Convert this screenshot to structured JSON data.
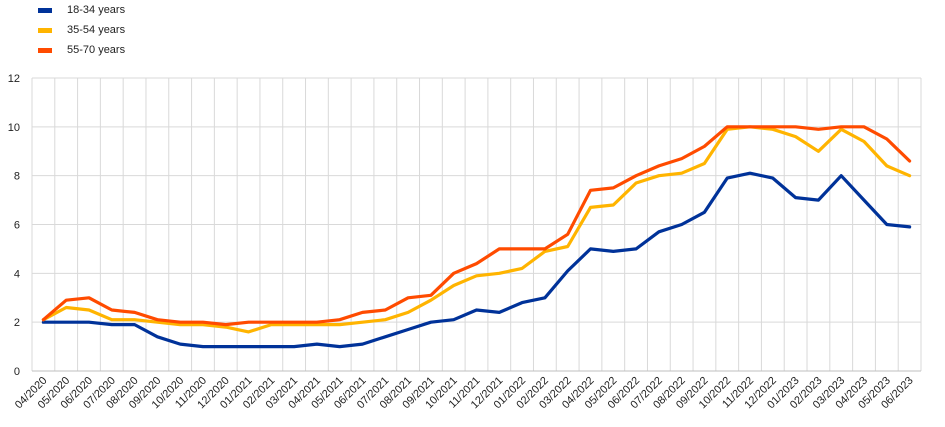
{
  "chart_data": {
    "type": "line",
    "x": [
      "04/2020",
      "05/2020",
      "06/2020",
      "07/2020",
      "08/2020",
      "09/2020",
      "10/2020",
      "11/2020",
      "12/2020",
      "01/2021",
      "02/2021",
      "03/2021",
      "04/2021",
      "05/2021",
      "06/2021",
      "07/2021",
      "08/2021",
      "09/2021",
      "10/2021",
      "11/2021",
      "12/2021",
      "01/2022",
      "02/2022",
      "03/2022",
      "04/2022",
      "05/2022",
      "06/2022",
      "07/2022",
      "08/2022",
      "09/2022",
      "10/2022",
      "11/2022",
      "12/2022",
      "01/2023",
      "02/2023",
      "03/2023",
      "04/2023",
      "05/2023",
      "06/2023"
    ],
    "series": [
      {
        "name": "18-34 years",
        "color": "#003299",
        "values": [
          2.0,
          2.0,
          2.0,
          1.9,
          1.9,
          1.4,
          1.1,
          1.0,
          1.0,
          1.0,
          1.0,
          1.0,
          1.1,
          1.0,
          1.1,
          1.4,
          1.7,
          2.0,
          2.1,
          2.5,
          2.4,
          2.8,
          3.0,
          4.1,
          5.0,
          4.9,
          5.0,
          5.7,
          6.0,
          6.5,
          7.9,
          8.1,
          7.9,
          7.1,
          7.0,
          8.0,
          7.0,
          6.0,
          5.9
        ]
      },
      {
        "name": "35-54 years",
        "color": "#FFB400",
        "values": [
          2.1,
          2.6,
          2.5,
          2.1,
          2.1,
          2.0,
          1.9,
          1.9,
          1.8,
          1.6,
          1.9,
          1.9,
          1.9,
          1.9,
          2.0,
          2.1,
          2.4,
          2.9,
          3.5,
          3.9,
          4.0,
          4.2,
          4.9,
          5.1,
          6.7,
          6.8,
          7.7,
          8.0,
          8.1,
          8.5,
          9.9,
          10.0,
          9.9,
          9.6,
          9.0,
          9.9,
          9.4,
          8.4,
          8.0
        ]
      },
      {
        "name": "55-70 years",
        "color": "#FF4B00",
        "values": [
          2.1,
          2.9,
          3.0,
          2.5,
          2.4,
          2.1,
          2.0,
          2.0,
          1.9,
          2.0,
          2.0,
          2.0,
          2.0,
          2.1,
          2.4,
          2.5,
          3.0,
          3.1,
          4.0,
          4.4,
          5.0,
          5.0,
          5.0,
          5.6,
          7.4,
          7.5,
          8.0,
          8.4,
          8.7,
          9.2,
          10.0,
          10.0,
          10.0,
          10.0,
          9.9,
          10.0,
          10.0,
          9.5,
          8.6
        ]
      }
    ],
    "ylim": [
      0,
      12
    ],
    "yticks": [
      "0",
      "2",
      "4",
      "6",
      "8",
      "10",
      "12"
    ],
    "grid": true,
    "legend_position": "top-left",
    "title": "",
    "xlabel": "",
    "ylabel": ""
  },
  "legend": {
    "items": [
      {
        "label": "18-34 years",
        "color": "#003299"
      },
      {
        "label": "35-54 years",
        "color": "#FFB400"
      },
      {
        "label": "55-70 years",
        "color": "#FF4B00"
      }
    ]
  }
}
